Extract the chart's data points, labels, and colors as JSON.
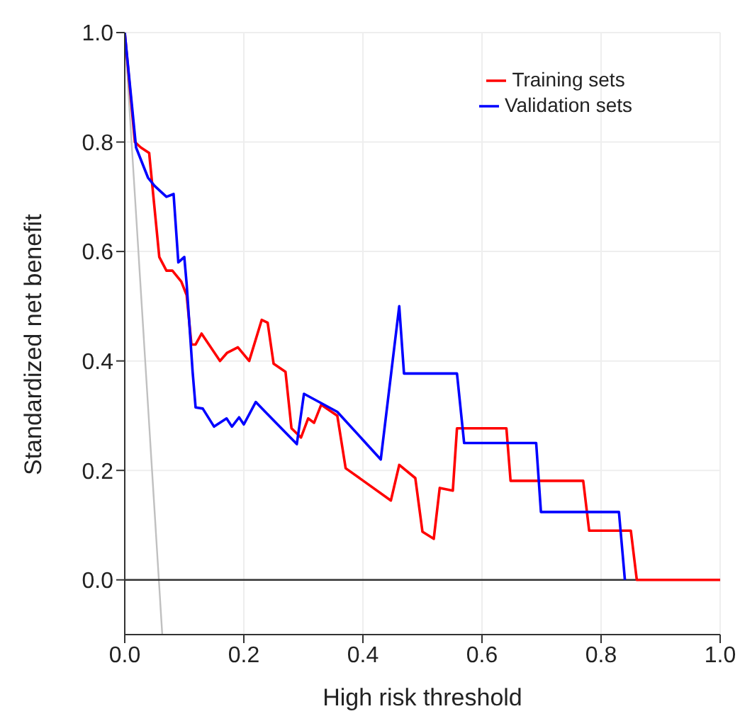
{
  "chart_data": {
    "type": "line",
    "xlabel": "High risk threshold",
    "ylabel": "Standardized net benefit",
    "xlim": [
      0,
      1
    ],
    "ylim": [
      -0.1,
      1
    ],
    "xticks": [
      {
        "value": 0,
        "label": "0.0"
      },
      {
        "value": 0.2,
        "label": "0.2"
      },
      {
        "value": 0.4,
        "label": "0.4"
      },
      {
        "value": 0.6,
        "label": "0.6"
      },
      {
        "value": 0.8,
        "label": "0.8"
      },
      {
        "value": 1,
        "label": "1.0"
      }
    ],
    "yticks": [
      {
        "value": 0,
        "label": "0.0"
      },
      {
        "value": 0.2,
        "label": "0.2"
      },
      {
        "value": 0.4,
        "label": "0.4"
      },
      {
        "value": 0.6,
        "label": "0.6"
      },
      {
        "value": 0.8,
        "label": "0.8"
      },
      {
        "value": 1,
        "label": "1.0"
      }
    ],
    "grid": true,
    "legend": "top right",
    "marker": "none",
    "line_style": "solid",
    "series": [
      {
        "color": "#c0c0c0",
        "x": [
          0,
          0.063
        ],
        "values": [
          1,
          -0.1
        ]
      },
      {
        "color": "#333333",
        "x": [
          0,
          1
        ],
        "values": [
          0,
          0
        ]
      },
      {
        "name": "Training sets",
        "color": "#ff0000",
        "x": [
          0,
          0.017,
          0.027,
          0.041,
          0.058,
          0.07,
          0.08,
          0.095,
          0.104,
          0.112,
          0.119,
          0.129,
          0.16,
          0.172,
          0.19,
          0.209,
          0.23,
          0.24,
          0.25,
          0.27,
          0.28,
          0.296,
          0.308,
          0.318,
          0.33,
          0.357,
          0.371,
          0.447,
          0.461,
          0.488,
          0.5,
          0.519,
          0.529,
          0.551,
          0.558,
          0.641,
          0.648,
          0.77,
          0.78,
          0.85,
          0.86,
          1
        ],
        "values": [
          1,
          0.8,
          0.79,
          0.78,
          0.59,
          0.565,
          0.565,
          0.545,
          0.52,
          0.43,
          0.43,
          0.45,
          0.4,
          0.415,
          0.425,
          0.4,
          0.475,
          0.47,
          0.395,
          0.38,
          0.277,
          0.26,
          0.295,
          0.287,
          0.32,
          0.3,
          0.204,
          0.145,
          0.21,
          0.186,
          0.088,
          0.075,
          0.168,
          0.163,
          0.277,
          0.277,
          0.181,
          0.181,
          0.09,
          0.09,
          0,
          0
        ]
      },
      {
        "name": "Validation sets",
        "color": "#0000ff",
        "x": [
          0,
          0.019,
          0.039,
          0.05,
          0.07,
          0.082,
          0.09,
          0.095,
          0.1,
          0.104,
          0.114,
          0.119,
          0.131,
          0.15,
          0.171,
          0.18,
          0.192,
          0.2,
          0.22,
          0.236,
          0.289,
          0.301,
          0.357,
          0.43,
          0.461,
          0.469,
          0.558,
          0.57,
          0.691,
          0.699,
          0.83,
          0.84
        ],
        "values": [
          1,
          0.79,
          0.735,
          0.72,
          0.7,
          0.705,
          0.58,
          0.585,
          0.59,
          0.54,
          0.38,
          0.315,
          0.313,
          0.28,
          0.295,
          0.28,
          0.297,
          0.284,
          0.325,
          0.307,
          0.248,
          0.34,
          0.307,
          0.22,
          0.5,
          0.377,
          0.377,
          0.25,
          0.25,
          0.124,
          0.124,
          0
        ]
      }
    ]
  }
}
